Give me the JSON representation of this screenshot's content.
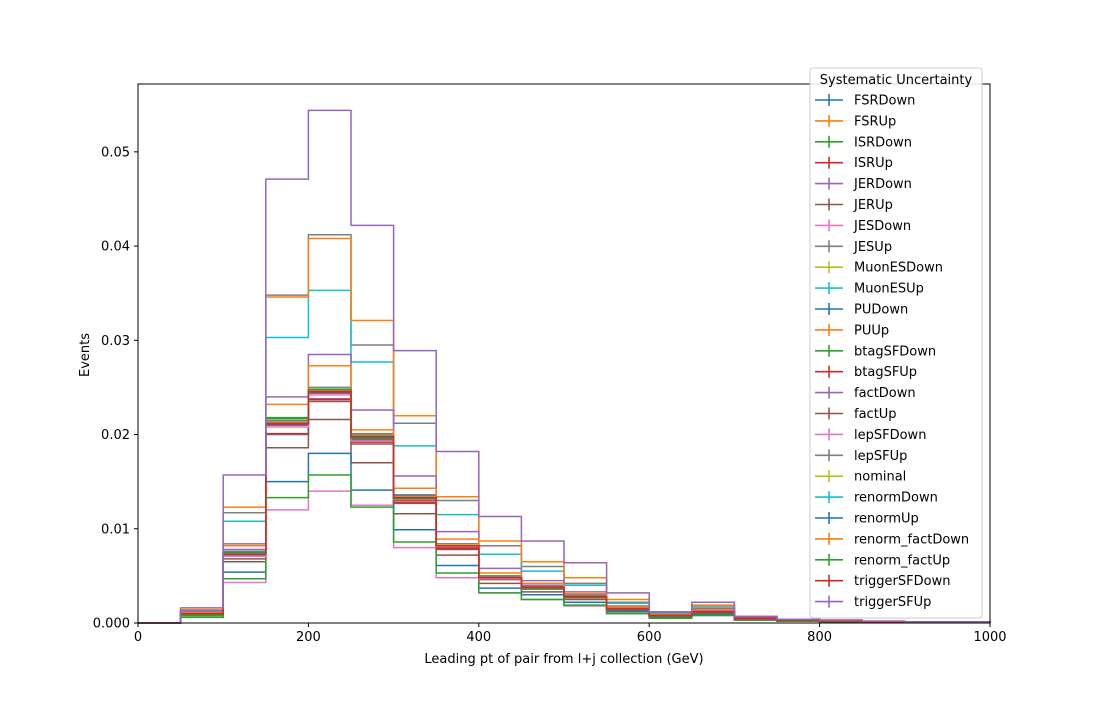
{
  "chart_data": {
    "type": "step",
    "xlabel": "Leading pt of pair from l+j collection (GeV)",
    "ylabel": "Events",
    "xlim": [
      0,
      1000
    ],
    "ylim": [
      0,
      0.0572
    ],
    "xticks": [
      0,
      200,
      400,
      600,
      800,
      1000
    ],
    "yticks": [
      0.0,
      0.01,
      0.02,
      0.03,
      0.04,
      0.05
    ],
    "ytick_labels": [
      "0.000",
      "0.01",
      "0.02",
      "0.03",
      "0.04",
      "0.05"
    ],
    "bin_edges": [
      0,
      50,
      100,
      150,
      200,
      250,
      300,
      350,
      400,
      450,
      500,
      550,
      600,
      650,
      700,
      750,
      800,
      850,
      900,
      950,
      1000
    ],
    "legend": {
      "title": "Systematic Uncertainty",
      "placement": "top-right"
    },
    "series": [
      {
        "name": "FSRDown",
        "color": "#1f77b4",
        "values": [
          0,
          0.001,
          0.0072,
          0.0212,
          0.0245,
          0.02,
          0.0135,
          0.0082,
          0.0048,
          0.0038,
          0.0028,
          0.0015,
          0.0008,
          0.0012,
          0.0005,
          0.0003,
          0.0002,
          0.0001,
          0.0001,
          0.0001
        ]
      },
      {
        "name": "FSRUp",
        "color": "#ff7f0e",
        "values": [
          0,
          0.0011,
          0.0073,
          0.0213,
          0.0246,
          0.0198,
          0.0132,
          0.0081,
          0.0049,
          0.0039,
          0.0029,
          0.0016,
          0.0008,
          0.0013,
          0.0005,
          0.0003,
          0.0002,
          0.0001,
          0.0001,
          0.0001
        ]
      },
      {
        "name": "ISRDown",
        "color": "#2ca02c",
        "values": [
          0,
          0.0008,
          0.0075,
          0.0218,
          0.0248,
          0.0197,
          0.0131,
          0.0083,
          0.005,
          0.0037,
          0.0027,
          0.0015,
          0.0008,
          0.0012,
          0.0005,
          0.0003,
          0.0002,
          0.0001,
          0.0001,
          0.0001
        ]
      },
      {
        "name": "ISRUp",
        "color": "#d62728",
        "values": [
          0,
          0.001,
          0.0074,
          0.021,
          0.0244,
          0.0195,
          0.013,
          0.008,
          0.0048,
          0.0038,
          0.0028,
          0.0015,
          0.0008,
          0.0012,
          0.0005,
          0.0003,
          0.0002,
          0.0001,
          0.0001,
          0.0001
        ]
      },
      {
        "name": "JERDown",
        "color": "#9467bd",
        "values": [
          0,
          0.0012,
          0.0078,
          0.0214,
          0.0238,
          0.0194,
          0.0136,
          0.0084,
          0.0049,
          0.004,
          0.003,
          0.0016,
          0.0008,
          0.0014,
          0.0005,
          0.0003,
          0.0002,
          0.0001,
          0.0001,
          0.0001
        ]
      },
      {
        "name": "JERUp",
        "color": "#8c564b",
        "values": [
          0,
          0.001,
          0.0065,
          0.0186,
          0.0216,
          0.017,
          0.0116,
          0.0072,
          0.0042,
          0.0033,
          0.0025,
          0.0013,
          0.0007,
          0.001,
          0.0004,
          0.0003,
          0.0002,
          0.0001,
          0.0001,
          0.0001
        ]
      },
      {
        "name": "JESDown",
        "color": "#e377c2",
        "values": [
          0,
          0.0008,
          0.0043,
          0.012,
          0.014,
          0.0125,
          0.008,
          0.0048,
          0.0032,
          0.0025,
          0.0018,
          0.001,
          0.0006,
          0.0008,
          0.0003,
          0.0002,
          0.0001,
          0.0001,
          0.0001,
          0.0001
        ]
      },
      {
        "name": "JESUp",
        "color": "#7f7f7f",
        "values": [
          0,
          0.0013,
          0.0117,
          0.0348,
          0.0412,
          0.0295,
          0.0212,
          0.013,
          0.0082,
          0.006,
          0.0042,
          0.0022,
          0.0011,
          0.0018,
          0.0006,
          0.0004,
          0.0003,
          0.0001,
          0.0001,
          0.0001
        ]
      },
      {
        "name": "MuonESDown",
        "color": "#bcbd22",
        "values": [
          0,
          0.001,
          0.0074,
          0.0213,
          0.0247,
          0.0199,
          0.0134,
          0.0083,
          0.0048,
          0.0038,
          0.0028,
          0.0015,
          0.0008,
          0.0012,
          0.0005,
          0.0003,
          0.0002,
          0.0001,
          0.0001,
          0.0001
        ]
      },
      {
        "name": "MuonESUp",
        "color": "#17becf",
        "values": [
          0,
          0.0012,
          0.0108,
          0.0303,
          0.0353,
          0.0277,
          0.0188,
          0.0115,
          0.0073,
          0.0055,
          0.004,
          0.0021,
          0.001,
          0.0016,
          0.0006,
          0.0004,
          0.0003,
          0.0001,
          0.0001,
          0.0001
        ]
      },
      {
        "name": "PUDown",
        "color": "#1f77b4",
        "values": [
          0,
          0.0009,
          0.0054,
          0.015,
          0.018,
          0.0141,
          0.0099,
          0.0061,
          0.0037,
          0.003,
          0.0022,
          0.0012,
          0.0006,
          0.0009,
          0.0004,
          0.0002,
          0.0002,
          0.0001,
          0.0001,
          0.0001
        ]
      },
      {
        "name": "PUUp",
        "color": "#ff7f0e",
        "values": [
          0,
          0.0014,
          0.0123,
          0.0346,
          0.0408,
          0.0321,
          0.022,
          0.0134,
          0.0087,
          0.0065,
          0.0048,
          0.0025,
          0.0012,
          0.0019,
          0.0007,
          0.0004,
          0.0003,
          0.0002,
          0.0001,
          0.0001
        ]
      },
      {
        "name": "btagSFDown",
        "color": "#2ca02c",
        "values": [
          0,
          0.0006,
          0.0047,
          0.0133,
          0.0157,
          0.0123,
          0.0086,
          0.0053,
          0.0032,
          0.0025,
          0.0019,
          0.001,
          0.0005,
          0.0008,
          0.0003,
          0.0002,
          0.0001,
          0.0001,
          0.0001,
          0.0001
        ]
      },
      {
        "name": "btagSFUp",
        "color": "#d62728",
        "values": [
          0,
          0.001,
          0.0071,
          0.0201,
          0.0237,
          0.0192,
          0.0128,
          0.0079,
          0.0047,
          0.0037,
          0.0027,
          0.0015,
          0.0008,
          0.0012,
          0.0005,
          0.0003,
          0.0002,
          0.0001,
          0.0001,
          0.0001
        ]
      },
      {
        "name": "factDown",
        "color": "#9467bd",
        "values": [
          0,
          0.0013,
          0.0084,
          0.024,
          0.0285,
          0.0226,
          0.0156,
          0.0097,
          0.0058,
          0.0045,
          0.0033,
          0.0018,
          0.0009,
          0.0015,
          0.0006,
          0.0004,
          0.0002,
          0.0001,
          0.0001,
          0.0001
        ]
      },
      {
        "name": "factUp",
        "color": "#8c564b",
        "values": [
          0,
          0.0009,
          0.0068,
          0.02,
          0.0235,
          0.019,
          0.0127,
          0.0078,
          0.0046,
          0.0036,
          0.0027,
          0.0014,
          0.0007,
          0.0011,
          0.0004,
          0.0003,
          0.0002,
          0.0001,
          0.0001,
          0.0001
        ]
      },
      {
        "name": "lepSFDown",
        "color": "#e377c2",
        "values": [
          0,
          0.001,
          0.0071,
          0.0208,
          0.0242,
          0.0193,
          0.0131,
          0.0081,
          0.0047,
          0.0038,
          0.0028,
          0.0015,
          0.0008,
          0.0012,
          0.0005,
          0.0003,
          0.0002,
          0.0001,
          0.0001,
          0.0001
        ]
      },
      {
        "name": "lepSFUp",
        "color": "#7f7f7f",
        "values": [
          0,
          0.001,
          0.0076,
          0.0215,
          0.025,
          0.0201,
          0.0136,
          0.0084,
          0.0049,
          0.0039,
          0.0029,
          0.0016,
          0.0008,
          0.0013,
          0.0005,
          0.0003,
          0.0002,
          0.0001,
          0.0001,
          0.0001
        ]
      },
      {
        "name": "nominal",
        "color": "#bcbd22",
        "values": [
          0,
          0.001,
          0.0074,
          0.0213,
          0.0247,
          0.0199,
          0.0134,
          0.0083,
          0.0048,
          0.0038,
          0.0028,
          0.0015,
          0.0008,
          0.0012,
          0.0005,
          0.0003,
          0.0002,
          0.0001,
          0.0001,
          0.0001
        ]
      },
      {
        "name": "renormDown",
        "color": "#17becf",
        "values": [
          0,
          0.001,
          0.0074,
          0.0212,
          0.0246,
          0.0198,
          0.0133,
          0.0082,
          0.0048,
          0.0038,
          0.0028,
          0.0015,
          0.0008,
          0.0012,
          0.0005,
          0.0003,
          0.0002,
          0.0001,
          0.0001,
          0.0001
        ]
      },
      {
        "name": "renormUp",
        "color": "#1f77b4",
        "values": [
          0,
          0.001,
          0.0073,
          0.0211,
          0.0245,
          0.0197,
          0.0133,
          0.0082,
          0.0048,
          0.0037,
          0.0028,
          0.0015,
          0.0008,
          0.0012,
          0.0005,
          0.0003,
          0.0002,
          0.0001,
          0.0001,
          0.0001
        ]
      },
      {
        "name": "renorm_factDown",
        "color": "#ff7f0e",
        "values": [
          0,
          0.0011,
          0.0082,
          0.0232,
          0.0273,
          0.0205,
          0.0143,
          0.0089,
          0.0053,
          0.0042,
          0.0031,
          0.0017,
          0.0009,
          0.0014,
          0.0005,
          0.0003,
          0.0002,
          0.0001,
          0.0001,
          0.0001
        ]
      },
      {
        "name": "renorm_factUp",
        "color": "#2ca02c",
        "values": [
          0,
          0.0008,
          0.0075,
          0.0217,
          0.0248,
          0.0196,
          0.0132,
          0.0082,
          0.0048,
          0.0037,
          0.0027,
          0.0015,
          0.0008,
          0.0012,
          0.0005,
          0.0003,
          0.0002,
          0.0001,
          0.0001,
          0.0001
        ]
      },
      {
        "name": "triggerSFDown",
        "color": "#d62728",
        "values": [
          0,
          0.001,
          0.0073,
          0.0212,
          0.0246,
          0.0198,
          0.0133,
          0.0082,
          0.0048,
          0.0038,
          0.0028,
          0.0015,
          0.0008,
          0.0012,
          0.0005,
          0.0003,
          0.0002,
          0.0001,
          0.0001,
          0.0001
        ]
      },
      {
        "name": "triggerSFUp",
        "color": "#9467bd",
        "values": [
          0,
          0.0016,
          0.0157,
          0.0471,
          0.0544,
          0.0422,
          0.0289,
          0.0182,
          0.0113,
          0.0087,
          0.0064,
          0.0032,
          0.0012,
          0.0022,
          0.0007,
          0.0004,
          0.0003,
          0.0002,
          0.0001,
          0.0001
        ]
      }
    ]
  }
}
